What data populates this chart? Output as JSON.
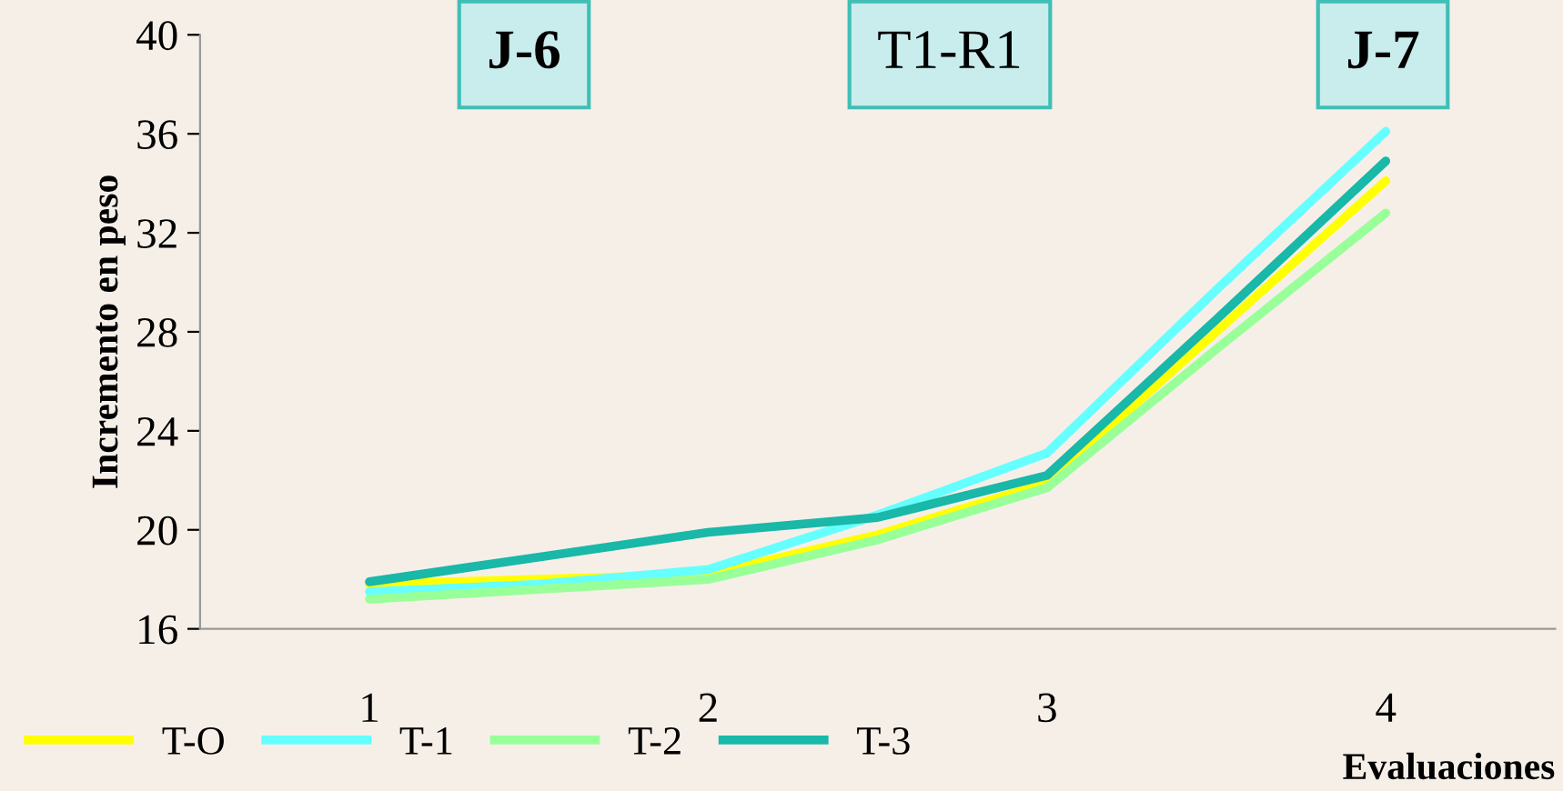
{
  "chart_data": {
    "type": "line",
    "x": [
      1,
      1.5,
      2,
      2.5,
      3,
      3.5,
      4
    ],
    "xlim": [
      0.5,
      4.5
    ],
    "xticks": [
      1,
      2,
      3,
      4
    ],
    "xlabel": "Evaluaciones",
    "ylabel": "Incremento en peso",
    "ylim": [
      16,
      40
    ],
    "yticks": [
      16,
      20,
      24,
      28,
      32,
      36,
      40
    ],
    "legend": "bottom left",
    "grid": false,
    "line_style": "solid",
    "annotations": [
      "J-6",
      "T1-R1",
      "J-7"
    ],
    "series": [
      {
        "name": "T-O",
        "color": "#ffff00",
        "values": [
          17.8,
          18.0,
          18.2,
          19.8,
          21.9,
          28.0,
          34.1
        ]
      },
      {
        "name": "T-1",
        "color": "#66ffff",
        "values": [
          17.5,
          17.8,
          18.4,
          20.6,
          23.1,
          29.7,
          36.1
        ]
      },
      {
        "name": "T-2",
        "color": "#99ff99",
        "values": [
          17.2,
          17.6,
          18.0,
          19.6,
          21.7,
          27.3,
          32.8
        ]
      },
      {
        "name": "T-3",
        "color": "#19b8a8",
        "values": [
          17.9,
          18.9,
          19.9,
          20.5,
          22.2,
          28.5,
          34.9
        ]
      }
    ]
  }
}
